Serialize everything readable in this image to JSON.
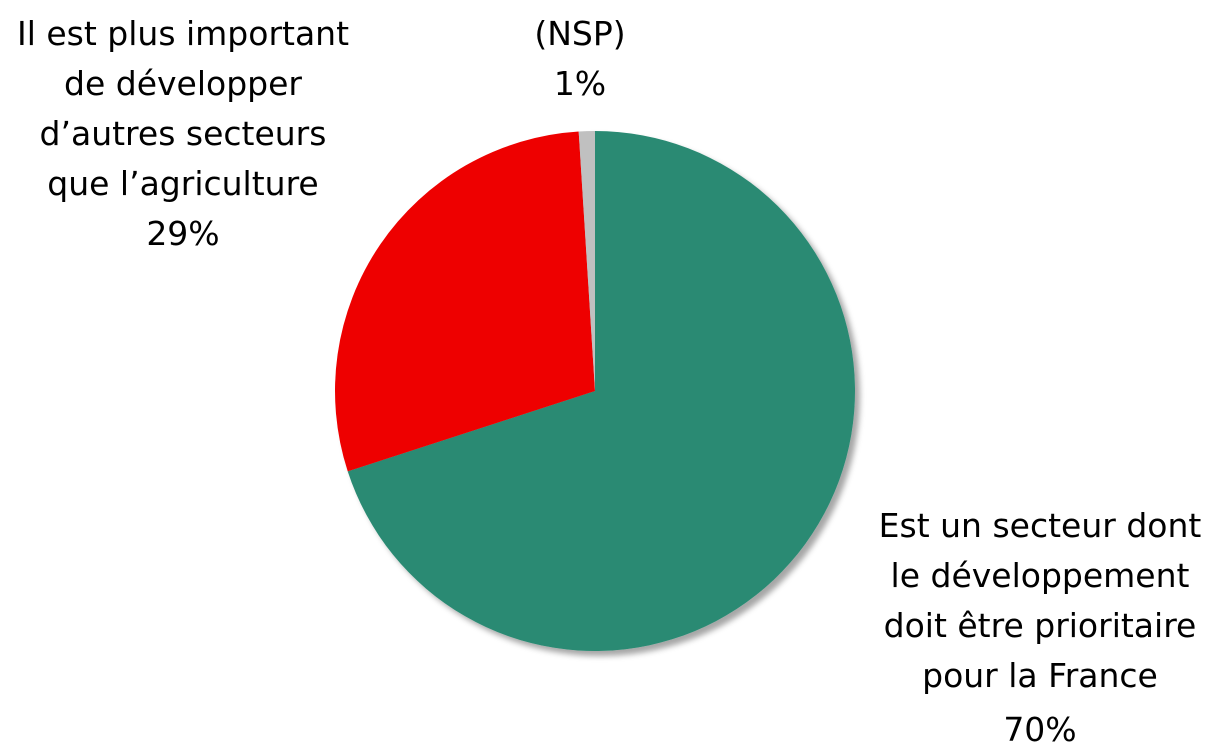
{
  "chart_data": {
    "type": "pie",
    "categories": [
      "Est un secteur dont\nle développement\ndoit être prioritaire\npour la France",
      "Il est plus important\nde développer\nd’autres secteurs\nque l’agriculture",
      "(NSP)"
    ],
    "values": [
      70,
      29,
      1
    ],
    "value_labels": [
      "70%",
      "29%",
      "1%"
    ],
    "colors": [
      "#2a8a73",
      "#ee0000",
      "#c0c0c0"
    ]
  }
}
